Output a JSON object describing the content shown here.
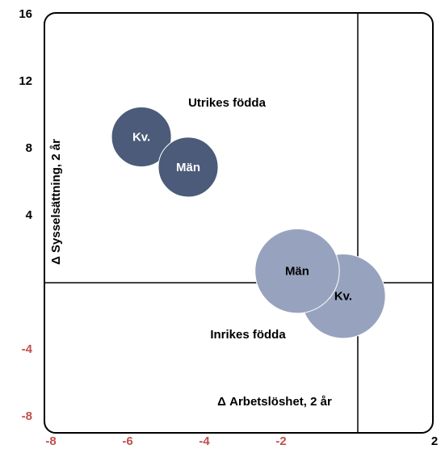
{
  "chart_data": {
    "type": "bubble",
    "x_label": "Δ Arbetslöshet, 2 år",
    "y_label": "Δ Sysselsättning, 2 år",
    "xlim": [
      -8,
      2
    ],
    "ylim": [
      -9,
      16
    ],
    "xticks": [
      -8,
      -6,
      -4,
      -2,
      2
    ],
    "yticks": [
      -8,
      -4,
      4,
      8,
      12,
      16
    ],
    "negative_tick_color": "#c0504d",
    "series": [
      {
        "name": "Utrikes födda",
        "color": "#4b5b79",
        "point_labels": [
          "Kv.",
          "Män"
        ],
        "x": [
          -5.64,
          -4.42
        ],
        "values": [
          8.7,
          6.9
        ],
        "sizes": [
          0.78,
          0.78
        ]
      },
      {
        "name": "Inrikes födda",
        "color": "#97a3be",
        "point_labels": [
          "Kv.",
          "Män"
        ],
        "x": [
          -0.38,
          -1.58
        ],
        "values": [
          -0.8,
          0.7
        ],
        "sizes": [
          1.1,
          1.1
        ]
      }
    ]
  }
}
